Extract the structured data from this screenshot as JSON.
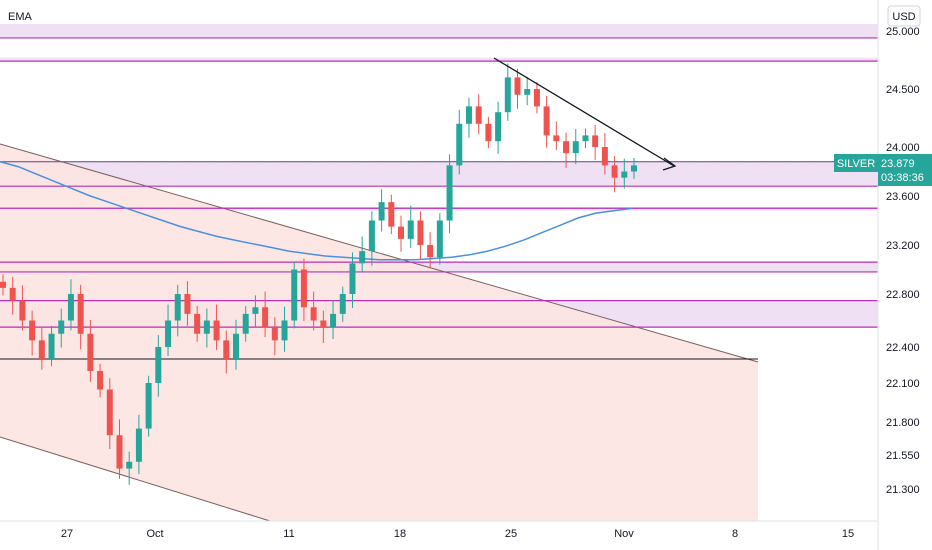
{
  "indicator_label": "EMA",
  "currency": "USD",
  "colors": {
    "up": "#26a69a",
    "down": "#ef5350",
    "ema": "#4a90e2",
    "level": "#b52fb5",
    "zone": "#ead6f0",
    "channel_fill": "#fce4e2",
    "tag": "#26a69a"
  },
  "chart_data": {
    "type": "line",
    "title": "",
    "symbol": "SILVER",
    "last_price": "23.879",
    "countdown": "03:38:36",
    "y_ticks": [
      "25.000",
      "24.500",
      "24.000",
      "23.600",
      "23.200",
      "22.800",
      "22.400",
      "22.100",
      "21.800",
      "21.550",
      "21.300"
    ],
    "x_ticks": [
      "27",
      "Oct",
      "11",
      "18",
      "25",
      "Nov",
      "8",
      "15"
    ],
    "ylim": [
      21.0,
      25.1
    ],
    "grid": false,
    "horizontal_levels": [
      24.94,
      24.74,
      23.88,
      23.68,
      23.5,
      23.06,
      22.98,
      22.75,
      22.55,
      22.3
    ],
    "zones": [
      [
        24.94,
        25.06
      ],
      [
        24.74,
        24.77
      ],
      [
        23.68,
        23.88
      ],
      [
        23.48,
        23.51
      ],
      [
        22.98,
        23.06
      ],
      [
        22.55,
        22.75
      ]
    ],
    "series": [
      {
        "values": [
          22.85,
          22.75,
          22.6,
          22.45,
          22.3,
          22.5,
          22.6,
          22.8,
          22.5,
          22.2,
          22.05,
          21.7,
          21.45,
          21.5,
          21.75,
          22.1,
          22.4,
          22.6,
          22.8,
          22.65,
          22.5,
          22.6,
          22.45,
          22.3,
          22.5,
          22.65,
          22.7,
          22.55,
          22.45,
          22.6,
          23.0,
          22.7,
          22.6,
          22.55,
          22.65,
          22.8,
          23.05,
          23.15,
          23.4,
          23.55,
          23.35,
          23.25,
          23.4,
          23.2,
          23.1,
          23.4,
          23.85,
          24.2,
          24.35,
          24.2,
          24.05,
          24.3,
          24.6,
          24.45,
          24.5,
          24.35,
          24.1,
          24.05,
          23.95,
          24.05,
          24.1,
          24.0,
          23.85,
          23.75,
          23.8,
          23.85
        ]
      },
      {
        "values": [
          23.88,
          23.84,
          23.78,
          23.72,
          23.66,
          23.6,
          23.55,
          23.5,
          23.45,
          23.4,
          23.35,
          23.31,
          23.27,
          23.24,
          23.21,
          23.18,
          23.15,
          23.13,
          23.11,
          23.1,
          23.09,
          23.08,
          23.08,
          23.08,
          23.09,
          23.1,
          23.12,
          23.15,
          23.19,
          23.24,
          23.3,
          23.36,
          23.42,
          23.46,
          23.48,
          23.5
        ]
      }
    ]
  }
}
